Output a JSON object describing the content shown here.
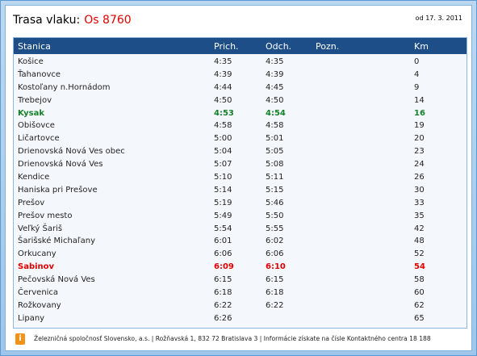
{
  "header": {
    "title_label": "Trasa vlaku:",
    "train_code": "Os 8760",
    "valid_from": "od 17. 3. 2011"
  },
  "table": {
    "columns": {
      "station": "Stanica",
      "arrival": "Prich.",
      "departure": "Odch.",
      "note": "Pozn.",
      "km": "Km"
    },
    "rows": [
      {
        "station": "Košice",
        "arrival": "4:35",
        "departure": "4:35",
        "note": "",
        "km": "0",
        "highlight": ""
      },
      {
        "station": "Ťahanovce",
        "arrival": "4:39",
        "departure": "4:39",
        "note": "",
        "km": "4",
        "highlight": ""
      },
      {
        "station": "Kostoľany n.Hornádom",
        "arrival": "4:44",
        "departure": "4:45",
        "note": "",
        "km": "9",
        "highlight": ""
      },
      {
        "station": "Trebejov",
        "arrival": "4:50",
        "departure": "4:50",
        "note": "",
        "km": "14",
        "highlight": ""
      },
      {
        "station": "Kysak",
        "arrival": "4:53",
        "departure": "4:54",
        "note": "",
        "km": "16",
        "highlight": "green"
      },
      {
        "station": "Obišovce",
        "arrival": "4:58",
        "departure": "4:58",
        "note": "",
        "km": "19",
        "highlight": ""
      },
      {
        "station": "Ličartovce",
        "arrival": "5:00",
        "departure": "5:01",
        "note": "",
        "km": "20",
        "highlight": ""
      },
      {
        "station": "Drienovská Nová Ves obec",
        "arrival": "5:04",
        "departure": "5:05",
        "note": "",
        "km": "23",
        "highlight": ""
      },
      {
        "station": "Drienovská Nová Ves",
        "arrival": "5:07",
        "departure": "5:08",
        "note": "",
        "km": "24",
        "highlight": ""
      },
      {
        "station": "Kendice",
        "arrival": "5:10",
        "departure": "5:11",
        "note": "",
        "km": "26",
        "highlight": ""
      },
      {
        "station": "Haniska pri Prešove",
        "arrival": "5:14",
        "departure": "5:15",
        "note": "",
        "km": "30",
        "highlight": ""
      },
      {
        "station": "Prešov",
        "arrival": "5:19",
        "departure": "5:46",
        "note": "",
        "km": "33",
        "highlight": ""
      },
      {
        "station": "Prešov mesto",
        "arrival": "5:49",
        "departure": "5:50",
        "note": "",
        "km": "35",
        "highlight": ""
      },
      {
        "station": "Veľký Šariš",
        "arrival": "5:54",
        "departure": "5:55",
        "note": "",
        "km": "42",
        "highlight": ""
      },
      {
        "station": "Šarišské Michaľany",
        "arrival": "6:01",
        "departure": "6:02",
        "note": "",
        "km": "48",
        "highlight": ""
      },
      {
        "station": "Orkucany",
        "arrival": "6:06",
        "departure": "6:06",
        "note": "",
        "km": "52",
        "highlight": ""
      },
      {
        "station": "Sabinov",
        "arrival": "6:09",
        "departure": "6:10",
        "note": "",
        "km": "54",
        "highlight": "red"
      },
      {
        "station": "Pečovská Nová Ves",
        "arrival": "6:15",
        "departure": "6:15",
        "note": "",
        "km": "58",
        "highlight": ""
      },
      {
        "station": "Červenica",
        "arrival": "6:18",
        "departure": "6:18",
        "note": "",
        "km": "60",
        "highlight": ""
      },
      {
        "station": "Rožkovany",
        "arrival": "6:22",
        "departure": "6:22",
        "note": "",
        "km": "62",
        "highlight": ""
      },
      {
        "station": "Lipany",
        "arrival": "6:26",
        "departure": "",
        "note": "",
        "km": "65",
        "highlight": ""
      }
    ]
  },
  "footer": {
    "info_icon": "info-icon",
    "info_glyph": "i",
    "text": "Železničná spoločnosť Slovensko, a.s. | Rožňavská 1, 832 72 Bratislava 3 | Informácie získate na čísle Kontaktného centra 18 188"
  },
  "colors": {
    "header_bar": "#1d4e87",
    "highlight_green": "#16802a",
    "highlight_red": "#e00000",
    "train_code": "#e00000",
    "info_icon": "#f29218"
  }
}
